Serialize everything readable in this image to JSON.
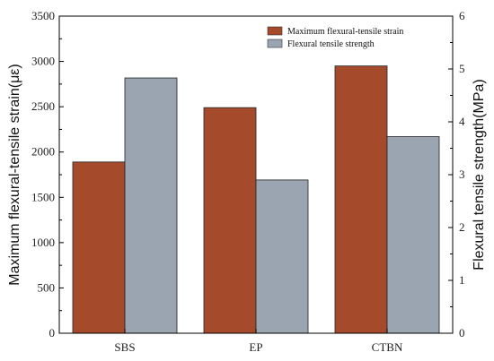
{
  "chart_data": {
    "type": "bar",
    "categories": [
      "SBS",
      "EP",
      "CTBN"
    ],
    "series": [
      {
        "name": "Maximum flexural-tensile strain",
        "axis": "left",
        "color": "#A64A2C",
        "values": [
          1890,
          2490,
          2950
        ]
      },
      {
        "name": "Flexural tensile strength",
        "axis": "right",
        "color": "#9AA5B1",
        "values": [
          4.83,
          2.9,
          3.72
        ]
      }
    ],
    "ylabel": "Maximum flexural-tensile strain(με)",
    "ylabel_right": "Flexural tensile strength(MPa)",
    "ylim": [
      0,
      3500
    ],
    "ylim_right": [
      0,
      6
    ],
    "yticks": [
      "0",
      "500",
      "1000",
      "1500",
      "2000",
      "2500",
      "3000",
      "3500"
    ],
    "yticks_right": [
      "0",
      "1",
      "2",
      "3",
      "4",
      "5",
      "6"
    ],
    "legend_position": "top-right",
    "grid": false
  }
}
